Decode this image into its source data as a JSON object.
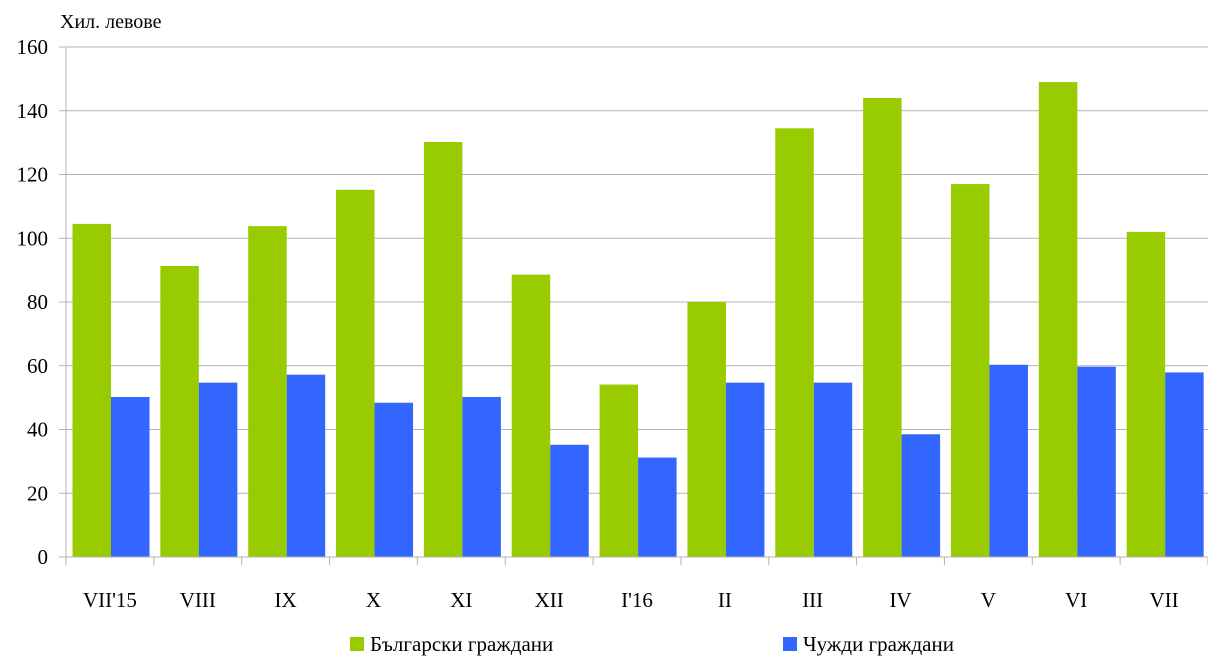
{
  "chart_data": {
    "type": "bar",
    "y_unit_label": "Хил. левове",
    "categories": [
      "VII'15",
      "VIII",
      "IX",
      "X",
      "XI",
      "XII",
      "I'16",
      "II",
      "III",
      "IV",
      "V",
      "VI",
      "VII"
    ],
    "series": [
      {
        "name": "Български граждани",
        "color": "#99cc00",
        "values": [
          104.5,
          91.3,
          103.8,
          115.2,
          130.2,
          88.6,
          54.1,
          80.0,
          134.5,
          144.0,
          117.0,
          149.0,
          102.0
        ]
      },
      {
        "name": "Чужди граждани",
        "color": "#3366ff",
        "values": [
          50.2,
          54.7,
          57.2,
          48.4,
          50.2,
          35.2,
          31.2,
          54.7,
          54.7,
          38.5,
          60.3,
          59.7,
          57.9
        ]
      }
    ],
    "ylim": [
      0,
      160
    ],
    "yticks": [
      0,
      20,
      40,
      60,
      80,
      100,
      120,
      140,
      160
    ],
    "grid": true,
    "legend_position": "bottom"
  }
}
